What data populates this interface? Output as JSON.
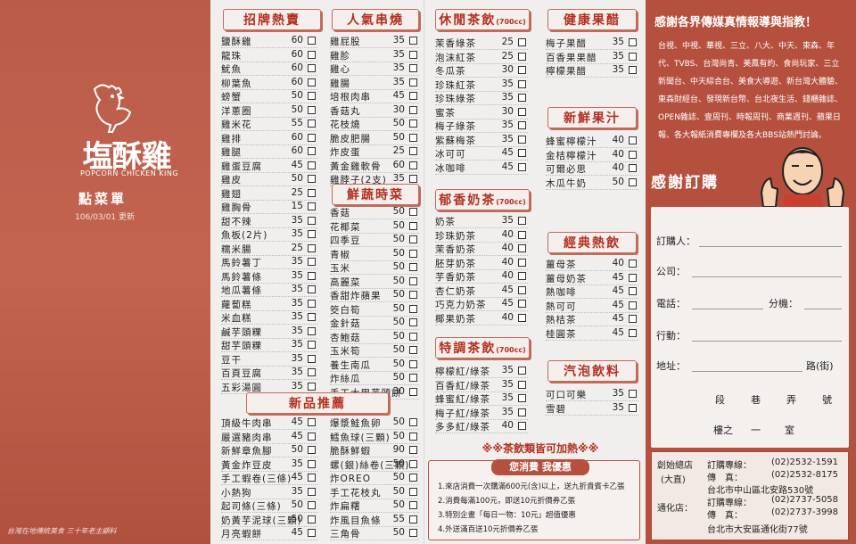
{
  "cover": {
    "brand": "塩酥雞",
    "brand_en": "POPCORN CHICKEN KING",
    "menu_title": "點菜單",
    "date": "106/03/01 更新",
    "footer": "台灣在地傳統美食 三十年老主顧料"
  },
  "sections": {
    "signature": {
      "title": "招牌熱賣",
      "items": [
        [
          "鹽酥雞",
          "60"
        ],
        [
          "龍珠",
          "60"
        ],
        [
          "魷魚",
          "60"
        ],
        [
          "柳葉魚",
          "60"
        ],
        [
          "螃蟹",
          "50"
        ],
        [
          "洋蔥圈",
          "50"
        ],
        [
          "雞米花",
          "55"
        ],
        [
          "雞排",
          "60"
        ],
        [
          "雞腿",
          "60"
        ],
        [
          "雞蛋豆腐",
          "45"
        ],
        [
          "雞皮",
          "50"
        ],
        [
          "雞翅",
          "25"
        ],
        [
          "雞胸骨",
          "15"
        ],
        [
          "甜不辣",
          "35"
        ],
        [
          "魚板(2片)",
          "35"
        ],
        [
          "糯米腸",
          "25"
        ],
        [
          "馬鈴薯丁",
          "35"
        ],
        [
          "馬鈴薯條",
          "35"
        ],
        [
          "地瓜薯條",
          "35"
        ],
        [
          "蘿蔔糕",
          "35"
        ],
        [
          "米血糕",
          "35"
        ],
        [
          "鹹芋頭粿",
          "35"
        ],
        [
          "甜芋頭粿",
          "35"
        ],
        [
          "豆干",
          "35"
        ],
        [
          "百頁豆腐",
          "35"
        ],
        [
          "五彩湯圓",
          "35"
        ]
      ]
    },
    "skewers": {
      "title": "人氣串燒",
      "items": [
        [
          "雞屁股",
          "35"
        ],
        [
          "雞胗",
          "35"
        ],
        [
          "雞心",
          "35"
        ],
        [
          "雞腸",
          "35"
        ],
        [
          "培根肉串",
          "45"
        ],
        [
          "香菇丸",
          "30"
        ],
        [
          "花枝燒",
          "50"
        ],
        [
          "脆皮肥腸",
          "50"
        ],
        [
          "炸皮蛋",
          "25"
        ],
        [
          "黃金雞軟骨",
          "60"
        ],
        [
          "雞脖子(2支)",
          "35"
        ]
      ]
    },
    "veggies": {
      "title": "鮮蔬時菜",
      "items": [
        [
          "香菇",
          "50"
        ],
        [
          "花椰菜",
          "50"
        ],
        [
          "四季豆",
          "50"
        ],
        [
          "青椒",
          "50"
        ],
        [
          "玉米",
          "50"
        ],
        [
          "高麗菜",
          "50"
        ],
        [
          "香甜炸蘋果",
          "50"
        ],
        [
          "筊白筍",
          "50"
        ],
        [
          "金針菇",
          "50"
        ],
        [
          "杏鮑菇",
          "50"
        ],
        [
          "玉米筍",
          "50"
        ],
        [
          "養生南瓜",
          "50"
        ],
        [
          "炸絲瓜",
          "50"
        ],
        [
          "手工大甲芋頭餅",
          "30"
        ]
      ]
    },
    "new_items": {
      "title": "新品推薦",
      "items_left": [
        [
          "頂級牛肉串",
          "45"
        ],
        [
          "嚴選豬肉串",
          "45"
        ],
        [
          "新鮮章魚腳",
          "50"
        ],
        [
          "黃金炸豆皮",
          "35"
        ],
        [
          "手工蝦卷(三條)",
          "45"
        ],
        [
          "小熱狗",
          "35"
        ],
        [
          "起司條(三條)",
          "50"
        ],
        [
          "奶黃芋泥球(三顆)",
          "50"
        ],
        [
          "月亮蝦餅",
          "45"
        ]
      ],
      "items_right": [
        [
          "爆漿鮭魚卵",
          "50"
        ],
        [
          "鱈魚球(三顆)",
          "50"
        ],
        [
          "脆酥鮮蝦",
          "90"
        ],
        [
          "螺(銀)絲卷(三顆)",
          "50"
        ],
        [
          "炸OREO",
          "50"
        ],
        [
          "手工花枝丸",
          "50"
        ],
        [
          "炸扁糬",
          "50"
        ],
        [
          "炸風目魚條",
          "55"
        ],
        [
          "三角骨",
          "50"
        ]
      ]
    },
    "leisure_tea": {
      "title": "休閒茶飲",
      "unit": "(700cc)",
      "items": [
        [
          "茉香綠茶",
          "25"
        ],
        [
          "泡沫紅茶",
          "25"
        ],
        [
          "冬瓜茶",
          "30"
        ],
        [
          "珍珠紅茶",
          "35"
        ],
        [
          "珍珠綠茶",
          "35"
        ],
        [
          "蜜茶",
          "30"
        ],
        [
          "梅子綠茶",
          "35"
        ],
        [
          "紫蘇梅茶",
          "35"
        ],
        [
          "冰可可",
          "45"
        ],
        [
          "冰咖啡",
          "45"
        ]
      ]
    },
    "milk_tea": {
      "title": "郁香奶茶",
      "unit": "(700cc)",
      "items": [
        [
          "奶茶",
          "35"
        ],
        [
          "珍珠奶茶",
          "40"
        ],
        [
          "茉香奶茶",
          "40"
        ],
        [
          "胚芽奶茶",
          "40"
        ],
        [
          "芋香奶茶",
          "40"
        ],
        [
          "杏仁奶茶",
          "45"
        ],
        [
          "巧克力奶茶",
          "45"
        ],
        [
          "椰果奶茶",
          "40"
        ]
      ]
    },
    "special_tea": {
      "title": "特調茶飲",
      "unit": "(700cc)",
      "items": [
        [
          "檸檬紅/綠茶",
          "35"
        ],
        [
          "百香紅/綠茶",
          "35"
        ],
        [
          "蜂蜜紅/綠茶",
          "35"
        ],
        [
          "梅子紅/綠茶",
          "35"
        ],
        [
          "多多紅/綠茶",
          "40"
        ]
      ]
    },
    "vinegar": {
      "title": "健康果醋",
      "items": [
        [
          "梅子果醋",
          "35"
        ],
        [
          "百香果果醋",
          "35"
        ],
        [
          "檸檬果醋",
          "35"
        ]
      ]
    },
    "juice": {
      "title": "新鮮果汁",
      "items": [
        [
          "蜂蜜檸檬汁",
          "40"
        ],
        [
          "金桔檸檬汁",
          "40"
        ],
        [
          "可爾必思",
          "40"
        ],
        [
          "木瓜牛奶",
          "50"
        ]
      ]
    },
    "hot": {
      "title": "經典熱飲",
      "items": [
        [
          "薑母茶",
          "40"
        ],
        [
          "薑母奶茶",
          "45"
        ],
        [
          "熱咖啡",
          "45"
        ],
        [
          "熱可可",
          "45"
        ],
        [
          "熱桔茶",
          "45"
        ],
        [
          "桂圓茶",
          "45"
        ]
      ]
    },
    "soda": {
      "title": "汽泡飲料",
      "items": [
        [
          "可口可樂",
          "35"
        ],
        [
          "雪碧",
          "35"
        ]
      ]
    }
  },
  "heat_note": "※※茶飲類皆可加熱※※",
  "promo": {
    "title": "您消費 我優惠",
    "lines": [
      "1.來店消費一次購滿600元(含)以上，送九折貴賓卡乙張",
      "2.消費每滿100元，即送10元折價券乙張",
      "3.特別企畫「每日一物：10元」超值優惠",
      "4.外送滿百送10元折價券乙張"
    ]
  },
  "thanks_media": "感謝各界傳媒真情報導與指教！",
  "media_text": "台視、中視、華視、三立、八大、中天、東森、年代、TVBS、台灣尚青、美鳳有約、食尚玩家、三立新聞台、中天綜合台、美食大導遊、新台灣大體驗、東森財經台、發現新台幣、台北夜生活、錢櫃雜誌、OPEN雜誌、壹周刊、時報周刊、商業週刊、蘋果日報、各大報紙消費專欄及各大BBS站熱門討論。",
  "thanks_order": "感謝訂購",
  "form": {
    "orderer": "訂購人：",
    "company": "公司：",
    "phone": "電話：",
    "ext": "分機：",
    "mobile": "行動：",
    "address": "地址：",
    "road": "路(街)",
    "sec": "段",
    "lane": "巷",
    "alley": "弄",
    "no": "號",
    "floor": "樓之",
    "dash": "一",
    "room": "室"
  },
  "shops": {
    "main_label": "創始總店",
    "main_area": "(大直)",
    "order_label": "訂購專線：",
    "main_phone": "(02)2532-1591",
    "fax_label": "傳　真：",
    "main_fax": "(02)2532-8175",
    "main_addr": "台北市中山區北安路530號",
    "branch_label": "通化店：",
    "branch_phone": "(02)2737-5058",
    "branch_fax": "(02)2737-3998",
    "branch_addr": "台北市大安區通化街77號"
  }
}
